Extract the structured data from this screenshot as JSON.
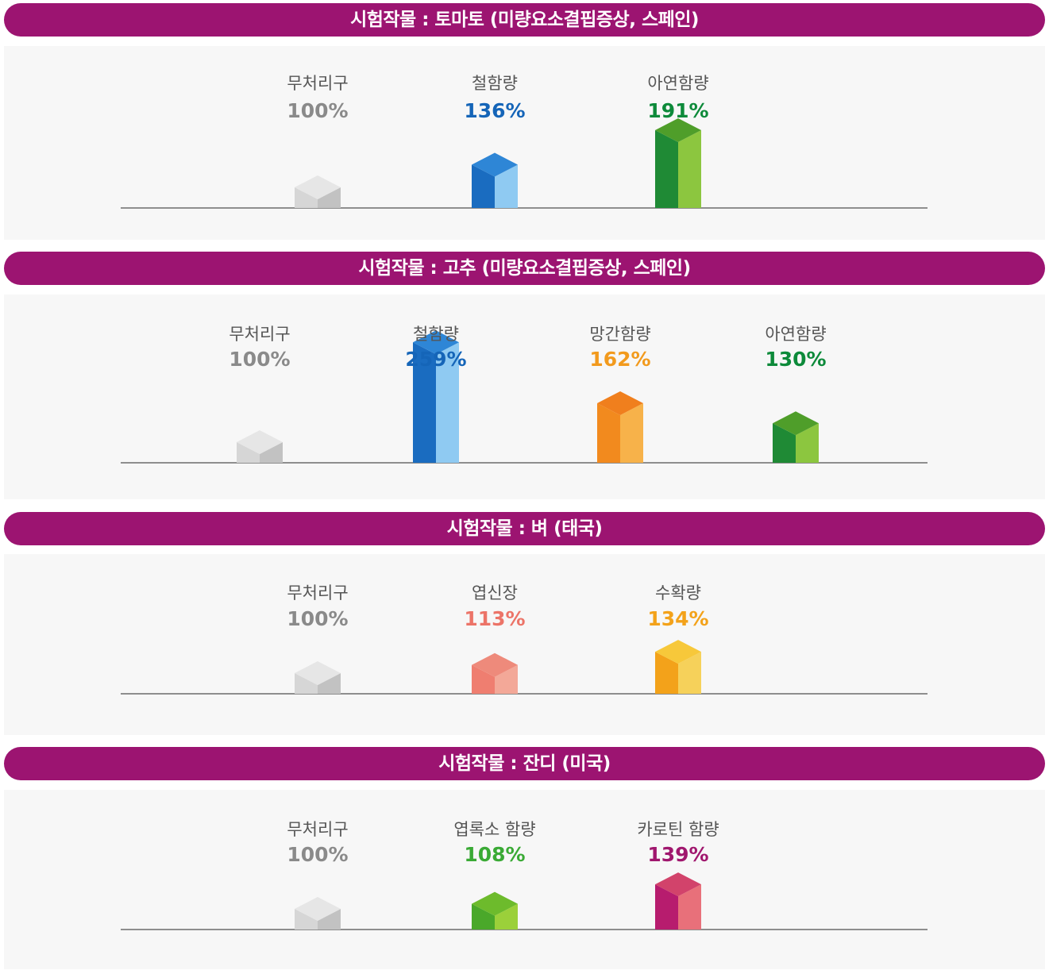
{
  "colors": {
    "banner": "#9c1471",
    "panel": "#f7f7f7",
    "label": "#555555",
    "gray": "#8a8a8a",
    "blue": "#1565b8",
    "green": "#0d8a3a",
    "orange": "#f29a1d",
    "salmon": "#ec7468",
    "gold": "#f3a21a",
    "brightgreen": "#3aaa35",
    "magenta": "#a0176e"
  },
  "chart_data": [
    {
      "type": "bar",
      "title": "시험작물 : 토마토 (미량요소결핍증상, 스페인)",
      "categories": [
        "무처리구",
        "철함량",
        "아연함량"
      ],
      "values": [
        100,
        136,
        191
      ],
      "value_labels": [
        "100%",
        "136%",
        "191%"
      ],
      "bar_styles": [
        "gray",
        "blue",
        "green"
      ]
    },
    {
      "type": "bar",
      "title": "시험작물 : 고추 (미량요소결핍증상, 스페인)",
      "categories": [
        "무처리구",
        "철함량",
        "망간함량",
        "아연함량"
      ],
      "values": [
        100,
        259,
        162,
        130
      ],
      "value_labels": [
        "100%",
        "259%",
        "162%",
        "130%"
      ],
      "bar_styles": [
        "gray",
        "blue",
        "orange",
        "green"
      ]
    },
    {
      "type": "bar",
      "title": "시험작물 : 벼 (태국)",
      "categories": [
        "무처리구",
        "엽신장",
        "수확량"
      ],
      "values": [
        100,
        113,
        134
      ],
      "value_labels": [
        "100%",
        "113%",
        "134%"
      ],
      "bar_styles": [
        "gray",
        "salmon",
        "gold"
      ]
    },
    {
      "type": "bar",
      "title": "시험작물 : 잔디 (미국)",
      "categories": [
        "무처리구",
        "엽록소 함량",
        "카로틴 함량"
      ],
      "values": [
        100,
        108,
        139
      ],
      "value_labels": [
        "100%",
        "108%",
        "139%"
      ],
      "bar_styles": [
        "gray",
        "brightgreen",
        "magenta"
      ]
    }
  ]
}
